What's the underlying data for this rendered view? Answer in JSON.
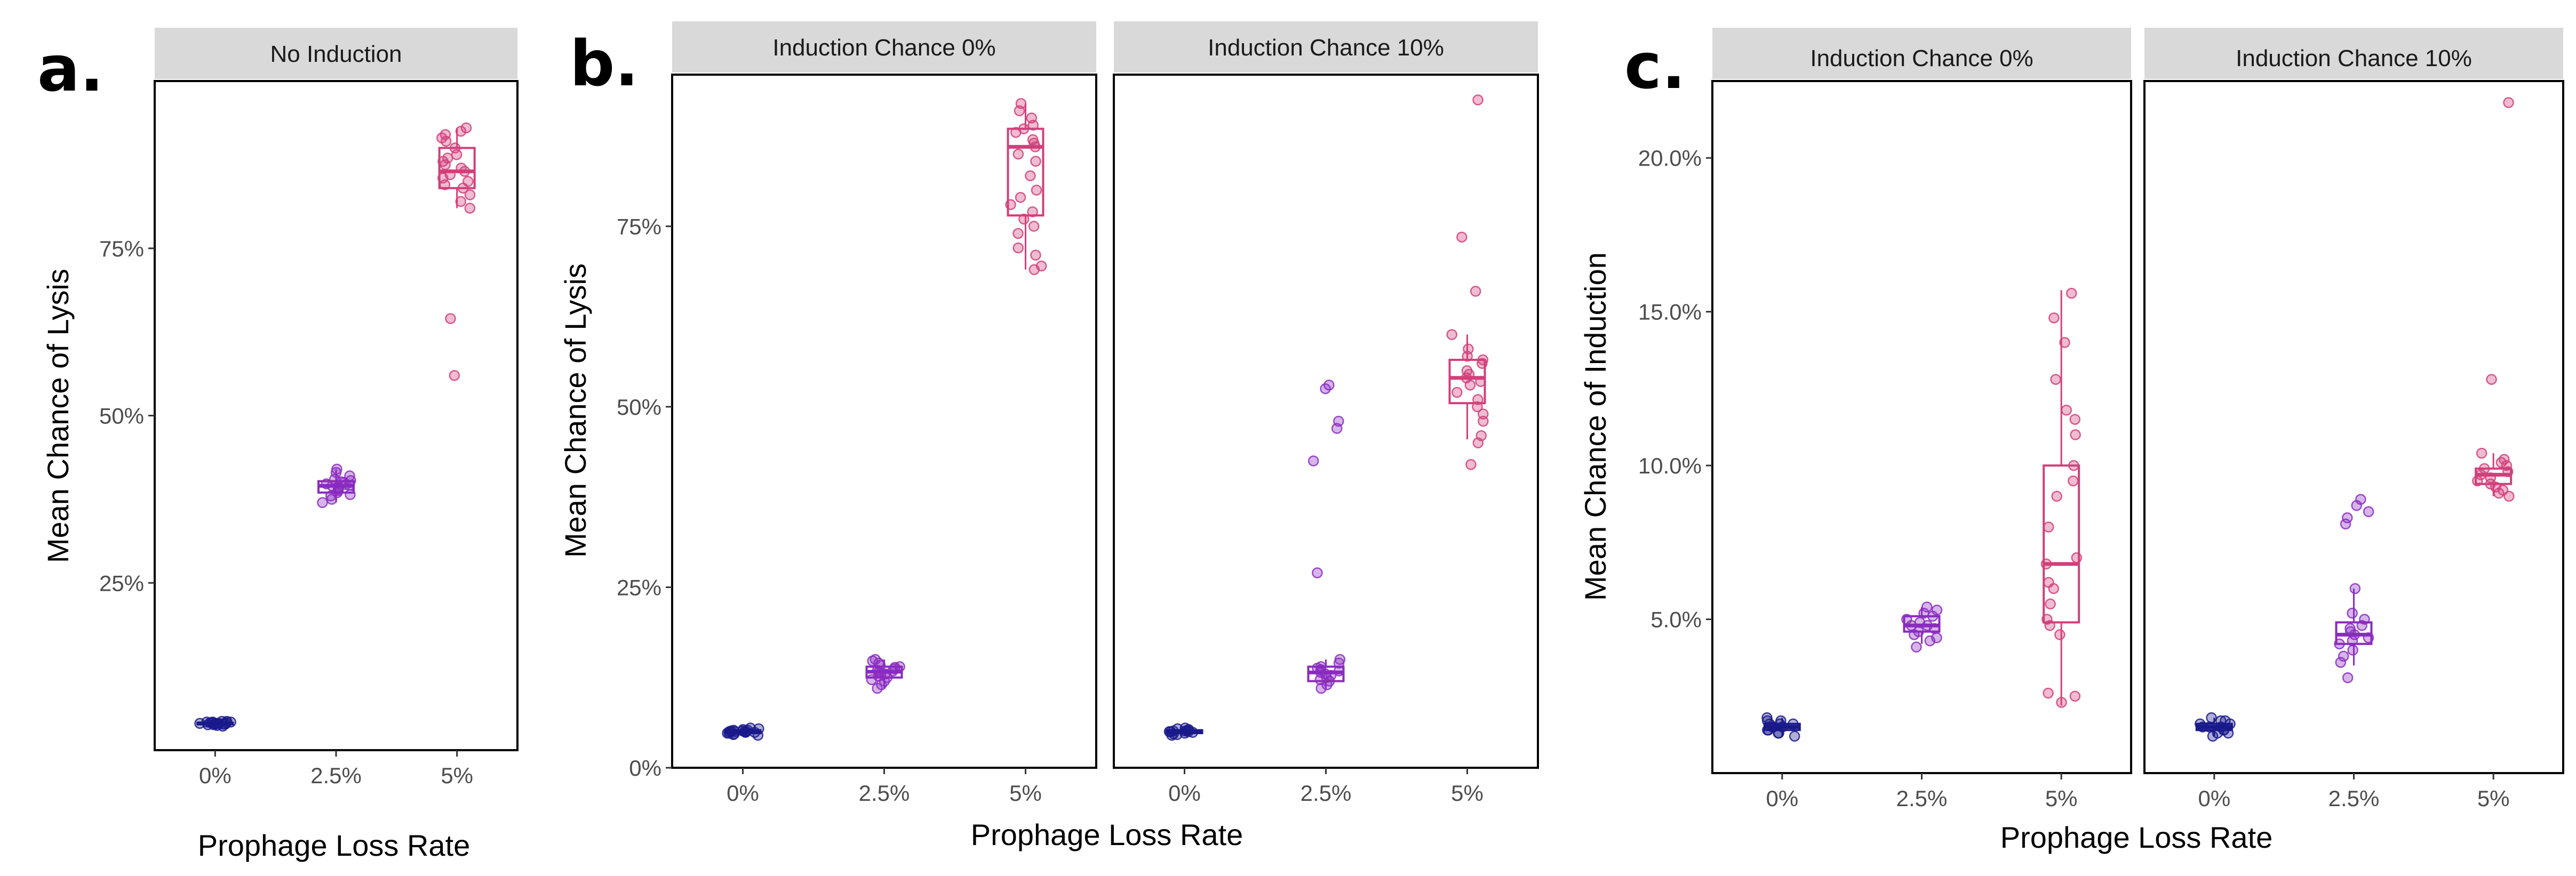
{
  "colors": {
    "0%": "#1a1a8c",
    "2.5%": "#8a2bbf",
    "5%": "#d23f7a",
    "strip_bg": "#d9d9d9"
  },
  "chart_data": [
    {
      "panel_tag": "a.",
      "type": "box-jitter",
      "facet": "No Induction",
      "xlabel": "Prophage Loss Rate",
      "ylabel": "Mean Chance of Lysis",
      "categories": [
        "0%",
        "2.5%",
        "5%"
      ],
      "ylim": [
        0,
        1
      ],
      "yticks": [
        0.25,
        0.5,
        0.75
      ],
      "ytick_labels": [
        "25%",
        "50%",
        "75%"
      ],
      "boxes": [
        {
          "x": "0%",
          "q1": 0.039,
          "median": 0.04,
          "q3": 0.041,
          "lo": 0.037,
          "hi": 0.043
        },
        {
          "x": "2.5%",
          "q1": 0.385,
          "median": 0.395,
          "q3": 0.402,
          "lo": 0.37,
          "hi": 0.42
        },
        {
          "x": "5%",
          "q1": 0.84,
          "median": 0.865,
          "q3": 0.9,
          "lo": 0.81,
          "hi": 0.93
        }
      ],
      "points": {
        "0%": [
          0.036,
          0.037,
          0.038,
          0.038,
          0.039,
          0.039,
          0.039,
          0.04,
          0.04,
          0.04,
          0.04,
          0.04,
          0.041,
          0.041,
          0.041,
          0.042,
          0.042,
          0.042,
          0.043,
          0.043
        ],
        "2.5%": [
          0.37,
          0.375,
          0.38,
          0.382,
          0.385,
          0.388,
          0.39,
          0.392,
          0.393,
          0.395,
          0.396,
          0.397,
          0.398,
          0.4,
          0.401,
          0.403,
          0.405,
          0.41,
          0.415,
          0.42
        ],
        "5%": [
          0.56,
          0.645,
          0.81,
          0.82,
          0.83,
          0.84,
          0.845,
          0.85,
          0.855,
          0.86,
          0.865,
          0.87,
          0.875,
          0.88,
          0.885,
          0.89,
          0.9,
          0.91,
          0.915,
          0.92,
          0.925,
          0.93
        ]
      }
    },
    {
      "panel_tag": "b.",
      "type": "box-jitter",
      "facet": "Induction Chance 0%",
      "xlabel": "Prophage Loss Rate",
      "ylabel": "Mean Chance of Lysis",
      "categories": [
        "0%",
        "2.5%",
        "5%"
      ],
      "ylim": [
        0,
        0.96
      ],
      "yticks": [
        0,
        0.25,
        0.5,
        0.75
      ],
      "ytick_labels": [
        "0%",
        "25%",
        "50%",
        "75%"
      ],
      "boxes": [
        {
          "x": "0%",
          "q1": 0.048,
          "median": 0.05,
          "q3": 0.052,
          "lo": 0.045,
          "hi": 0.055
        },
        {
          "x": "2.5%",
          "q1": 0.125,
          "median": 0.133,
          "q3": 0.14,
          "lo": 0.11,
          "hi": 0.15
        },
        {
          "x": "5%",
          "q1": 0.765,
          "median": 0.86,
          "q3": 0.885,
          "lo": 0.69,
          "hi": 0.92
        }
      ],
      "points": {
        "0%": [
          0.045,
          0.046,
          0.047,
          0.048,
          0.048,
          0.049,
          0.049,
          0.05,
          0.05,
          0.05,
          0.05,
          0.051,
          0.051,
          0.052,
          0.052,
          0.053,
          0.054,
          0.055
        ],
        "2.5%": [
          0.11,
          0.115,
          0.12,
          0.122,
          0.125,
          0.127,
          0.13,
          0.131,
          0.133,
          0.134,
          0.135,
          0.137,
          0.139,
          0.14,
          0.142,
          0.145,
          0.148,
          0.15
        ],
        "5%": [
          0.69,
          0.695,
          0.71,
          0.72,
          0.74,
          0.75,
          0.76,
          0.77,
          0.78,
          0.79,
          0.8,
          0.82,
          0.84,
          0.85,
          0.86,
          0.865,
          0.87,
          0.88,
          0.885,
          0.89,
          0.9,
          0.91,
          0.92
        ]
      }
    },
    {
      "type": "box-jitter",
      "facet": "Induction Chance 10%",
      "xlabel": "Prophage Loss Rate",
      "ylabel": "Mean Chance of Lysis",
      "categories": [
        "0%",
        "2.5%",
        "5%"
      ],
      "ylim": [
        0,
        0.96
      ],
      "boxes": [
        {
          "x": "0%",
          "q1": 0.048,
          "median": 0.05,
          "q3": 0.052,
          "lo": 0.045,
          "hi": 0.055
        },
        {
          "x": "2.5%",
          "q1": 0.12,
          "median": 0.132,
          "q3": 0.14,
          "lo": 0.11,
          "hi": 0.15
        },
        {
          "x": "5%",
          "q1": 0.505,
          "median": 0.54,
          "q3": 0.565,
          "lo": 0.455,
          "hi": 0.6
        }
      ],
      "points": {
        "0%": [
          0.045,
          0.046,
          0.047,
          0.048,
          0.049,
          0.05,
          0.05,
          0.05,
          0.051,
          0.051,
          0.052,
          0.053,
          0.054,
          0.055
        ],
        "2.5%": [
          0.11,
          0.115,
          0.12,
          0.122,
          0.125,
          0.128,
          0.13,
          0.132,
          0.134,
          0.136,
          0.138,
          0.14,
          0.145,
          0.15,
          0.27,
          0.425,
          0.47,
          0.48,
          0.525,
          0.53
        ],
        "5%": [
          0.42,
          0.45,
          0.46,
          0.48,
          0.49,
          0.5,
          0.51,
          0.52,
          0.53,
          0.535,
          0.54,
          0.545,
          0.55,
          0.56,
          0.565,
          0.57,
          0.58,
          0.6,
          0.66,
          0.735,
          0.925
        ]
      }
    },
    {
      "panel_tag": "c.",
      "type": "box-jitter",
      "facet": "Induction Chance 0%",
      "xlabel": "Prophage Loss Rate",
      "ylabel": "Mean Chance of Induction",
      "categories": [
        "0%",
        "2.5%",
        "5%"
      ],
      "ylim": [
        0,
        0.225
      ],
      "yticks": [
        0.05,
        0.1,
        0.15,
        0.2
      ],
      "ytick_labels": [
        "5.0%",
        "10.0%",
        "15.0%",
        "20.0%"
      ],
      "boxes": [
        {
          "x": "0%",
          "q1": 0.014,
          "median": 0.015,
          "q3": 0.016,
          "lo": 0.012,
          "hi": 0.018
        },
        {
          "x": "2.5%",
          "q1": 0.046,
          "median": 0.048,
          "q3": 0.051,
          "lo": 0.042,
          "hi": 0.054
        },
        {
          "x": "5%",
          "q1": 0.049,
          "median": 0.068,
          "q3": 0.1,
          "lo": 0.022,
          "hi": 0.157
        }
      ],
      "points": {
        "0%": [
          0.012,
          0.013,
          0.013,
          0.014,
          0.014,
          0.015,
          0.015,
          0.015,
          0.016,
          0.016,
          0.016,
          0.017,
          0.017,
          0.018
        ],
        "2.5%": [
          0.041,
          0.043,
          0.044,
          0.045,
          0.046,
          0.047,
          0.048,
          0.048,
          0.049,
          0.05,
          0.051,
          0.052,
          0.053,
          0.054
        ],
        "5%": [
          0.023,
          0.025,
          0.026,
          0.045,
          0.048,
          0.05,
          0.055,
          0.06,
          0.062,
          0.068,
          0.07,
          0.08,
          0.09,
          0.095,
          0.1,
          0.11,
          0.115,
          0.118,
          0.128,
          0.14,
          0.148,
          0.156
        ]
      }
    },
    {
      "type": "box-jitter",
      "facet": "Induction Chance 10%",
      "xlabel": "Prophage Loss Rate",
      "ylabel": "Mean Chance of Induction",
      "categories": [
        "0%",
        "2.5%",
        "5%"
      ],
      "ylim": [
        0,
        0.225
      ],
      "boxes": [
        {
          "x": "0%",
          "q1": 0.014,
          "median": 0.015,
          "q3": 0.016,
          "lo": 0.012,
          "hi": 0.018
        },
        {
          "x": "2.5%",
          "q1": 0.042,
          "median": 0.045,
          "q3": 0.049,
          "lo": 0.035,
          "hi": 0.06
        },
        {
          "x": "5%",
          "q1": 0.094,
          "median": 0.097,
          "q3": 0.099,
          "lo": 0.09,
          "hi": 0.104
        }
      ],
      "points": {
        "0%": [
          0.012,
          0.013,
          0.013,
          0.014,
          0.014,
          0.015,
          0.015,
          0.015,
          0.016,
          0.016,
          0.017,
          0.017,
          0.018
        ],
        "2.5%": [
          0.031,
          0.036,
          0.038,
          0.04,
          0.042,
          0.043,
          0.044,
          0.045,
          0.046,
          0.047,
          0.048,
          0.05,
          0.052,
          0.06,
          0.081,
          0.083,
          0.085,
          0.087,
          0.089
        ],
        "5%": [
          0.09,
          0.091,
          0.092,
          0.093,
          0.094,
          0.095,
          0.096,
          0.097,
          0.098,
          0.099,
          0.1,
          0.101,
          0.102,
          0.104,
          0.128,
          0.218
        ]
      }
    }
  ]
}
